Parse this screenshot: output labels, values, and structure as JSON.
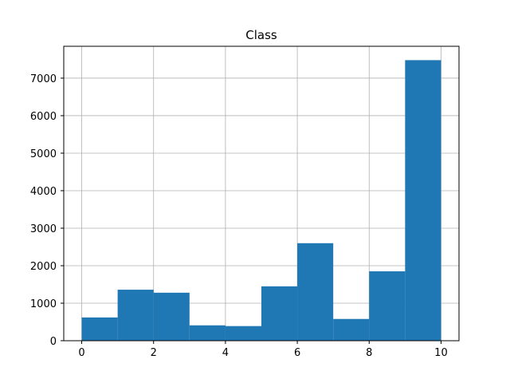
{
  "chart_data": {
    "type": "bar",
    "title": "Class",
    "xlabel": "",
    "ylabel": "",
    "bin_edges": [
      0,
      1,
      2,
      3,
      4,
      5,
      6,
      7,
      8,
      9,
      10
    ],
    "values": [
      620,
      1360,
      1280,
      410,
      390,
      1450,
      2600,
      580,
      1850,
      7480
    ],
    "xlim": [
      -0.5,
      10.5
    ],
    "ylim": [
      0,
      7850
    ],
    "xticks": [
      0,
      2,
      4,
      6,
      8,
      10
    ],
    "yticks": [
      0,
      1000,
      2000,
      3000,
      4000,
      5000,
      6000,
      7000
    ],
    "grid": true,
    "bar_color": "#1f77b4",
    "grid_color": "#b0b0b0"
  }
}
